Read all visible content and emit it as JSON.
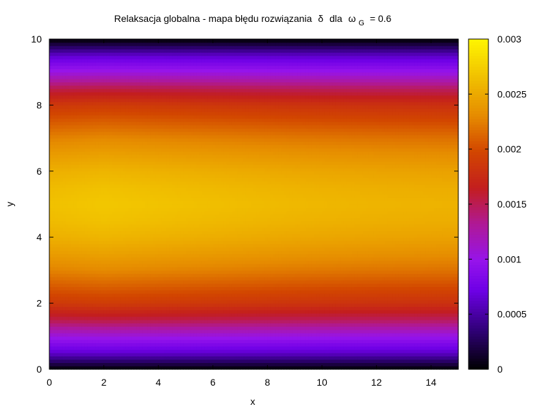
{
  "chart_data": {
    "type": "heatmap",
    "title": {
      "prefix": "Relaksacja globalna - mapa błędu rozwiązania",
      "delta": "δ",
      "dla": "dla",
      "omega": "ω",
      "subscript": "G",
      "suffix": "= 0.6"
    },
    "xlabel": "x",
    "ylabel": "y",
    "xlim": [
      0,
      15
    ],
    "ylim": [
      0,
      10
    ],
    "x_ticks": [
      0,
      2,
      4,
      6,
      8,
      10,
      12,
      14
    ],
    "y_ticks": [
      0,
      2,
      4,
      6,
      8,
      10
    ],
    "colorbar": {
      "range": [
        0,
        0.003
      ],
      "ticks": [
        0,
        0.0005,
        0.001,
        0.0015,
        0.002,
        0.0025,
        0.003
      ],
      "tick_labels": [
        "0",
        "0.0005",
        "0.001",
        "0.0015",
        "0.002",
        "0.0025",
        "0.003"
      ],
      "palette": "black-blue-purple-red-orange-yellow"
    },
    "field": {
      "description_of_shape": "error varies mainly with y, peaks near y=5 and falls to 0 at y=0 and y=10",
      "y_profile": {
        "y": [
          0,
          0.5,
          1,
          1.5,
          2,
          2.5,
          3,
          3.5,
          4,
          4.5,
          5,
          5.5,
          6,
          6.5,
          7,
          7.5,
          8,
          8.5,
          9,
          9.5,
          10
        ],
        "value": [
          0,
          0.00065,
          0.00105,
          0.00155,
          0.0019,
          0.0021,
          0.0023,
          0.00245,
          0.00258,
          0.00266,
          0.0027,
          0.00266,
          0.00258,
          0.00245,
          0.0023,
          0.0021,
          0.0019,
          0.00155,
          0.00105,
          0.00065,
          0
        ]
      },
      "x_modulation": {
        "x": [
          0,
          2,
          5,
          9,
          12,
          15
        ],
        "factor": [
          0.985,
          1.0,
          0.985,
          0.965,
          0.955,
          0.95
        ]
      }
    }
  }
}
